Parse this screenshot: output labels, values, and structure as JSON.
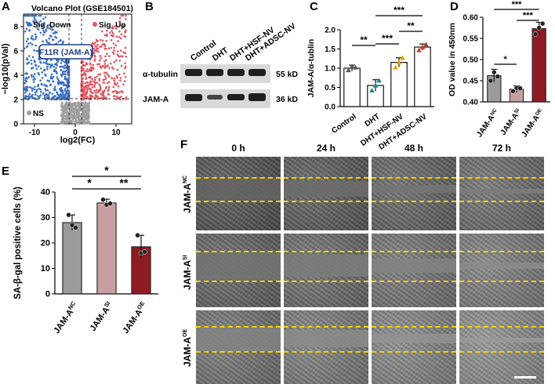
{
  "panels": {
    "A": {
      "letter": "A",
      "title": "Volcano Plot (GSE184501)",
      "legend": [
        "Sig_Down",
        "Sig_Up",
        "NS"
      ],
      "highlight_gene": "F11R (JAM-A)",
      "xlabel": "log2(FC)",
      "ylabel": "−log10(pVal)",
      "xticks": [
        "-10",
        "0",
        "10"
      ],
      "yticks": [
        "0",
        "2",
        "4",
        "6",
        "8"
      ],
      "colors": {
        "down": "#3a6fc4",
        "up": "#e0555f",
        "ns": "#9e9e9e"
      }
    },
    "B": {
      "letter": "B",
      "lanes": [
        "Control",
        "DHT",
        "DHT+HSF-NV",
        "DHT+ADSC-NV"
      ],
      "bands": [
        {
          "label": "α-tubulin",
          "size": "55 kD"
        },
        {
          "label": "JAM-A",
          "size": "36 kD"
        }
      ]
    },
    "F": {
      "letter": "F",
      "timepoints": [
        "0 h",
        "24 h",
        "48 h",
        "72 h"
      ],
      "rows": [
        "JAM-A",
        "JAM-A",
        "JAM-A"
      ],
      "row_sups": [
        "NC",
        "SI",
        "OE"
      ]
    }
  },
  "chart_data": [
    {
      "id": "C",
      "letter": "C",
      "type": "bar",
      "categories": [
        "Control",
        "DHT",
        "DHT+HSF-NV",
        "DHT+ADSC-NV"
      ],
      "values": [
        1.0,
        0.55,
        1.15,
        1.55
      ],
      "errors": [
        0.08,
        0.15,
        0.12,
        0.08
      ],
      "points": [
        [
          0.95,
          1.05,
          1.02
        ],
        [
          0.42,
          0.55,
          0.68
        ],
        [
          1.02,
          1.15,
          1.27
        ],
        [
          1.47,
          1.55,
          1.62
        ]
      ],
      "colors": [
        "#555555",
        "#1b8a8c",
        "#e0a100",
        "#c0392b"
      ],
      "ylabel": "JAM-A/α-tublin",
      "ylim": [
        0,
        2.0
      ],
      "yticks": [
        "0.0",
        "0.5",
        "1.0",
        "1.5",
        "2.0"
      ],
      "significance": [
        {
          "from": 0,
          "to": 1,
          "label": "**"
        },
        {
          "from": 1,
          "to": 2,
          "label": "***"
        },
        {
          "from": 1,
          "to": 3,
          "label": "***"
        },
        {
          "from": 2,
          "to": 3,
          "label": "**"
        }
      ]
    },
    {
      "id": "D",
      "letter": "D",
      "type": "bar",
      "categories": [
        "JAM-A",
        "JAM-A",
        "JAM-A"
      ],
      "category_sups": [
        "NC",
        "SI",
        "OE"
      ],
      "values": [
        0.462,
        0.43,
        0.573
      ],
      "errors": [
        0.015,
        0.008,
        0.015
      ],
      "points": [
        [
          0.45,
          0.47,
          0.46
        ],
        [
          0.425,
          0.433,
          0.432
        ],
        [
          0.56,
          0.575,
          0.585
        ]
      ],
      "colors": [
        "#9b9b9b",
        "#c79fa3",
        "#8e1b24"
      ],
      "ylabel": "OD value in 450nm",
      "ylim": [
        0.4,
        0.6
      ],
      "yticks": [
        "0.40",
        "0.45",
        "0.50",
        "0.55",
        "0.60"
      ],
      "significance": [
        {
          "from": 0,
          "to": 1,
          "label": "*"
        },
        {
          "from": 0,
          "to": 2,
          "label": "***"
        },
        {
          "from": 1,
          "to": 2,
          "label": "***"
        }
      ]
    },
    {
      "id": "E",
      "letter": "E",
      "type": "bar",
      "categories": [
        "JAM-A",
        "JAM-A",
        "JAM-A"
      ],
      "category_sups": [
        "NC",
        "SI",
        "OE"
      ],
      "values": [
        28.0,
        35.7,
        18.5
      ],
      "errors": [
        3.0,
        1.5,
        4.5
      ],
      "points": [
        [
          31,
          27,
          26
        ],
        [
          37,
          35,
          35.5
        ],
        [
          23,
          16,
          16.5
        ]
      ],
      "colors": [
        "#9b9b9b",
        "#c79fa3",
        "#8e1b24"
      ],
      "ylabel": "SA-β-gal positive cells (%)",
      "ylim": [
        0,
        40
      ],
      "yticks": [
        "0",
        "10",
        "20",
        "30",
        "40"
      ],
      "significance": [
        {
          "from": 0,
          "to": 1,
          "label": "*"
        },
        {
          "from": 1,
          "to": 2,
          "label": "**"
        },
        {
          "from": 0,
          "to": 2,
          "label": "*"
        }
      ]
    }
  ]
}
